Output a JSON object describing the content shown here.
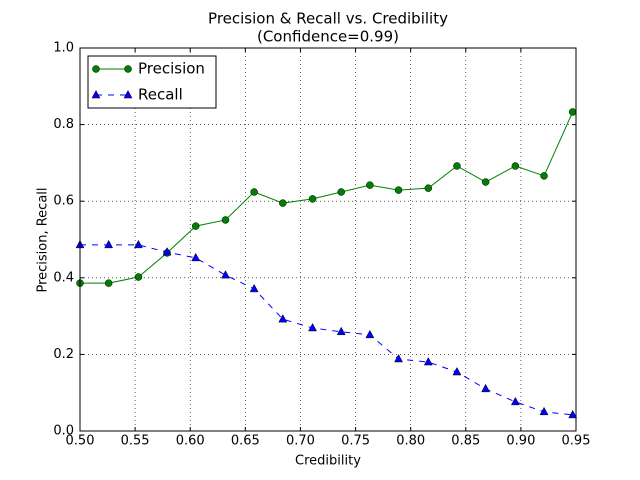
{
  "chart_data": {
    "type": "line",
    "title": "Precision & Recall vs. Credibility",
    "subtitle": "(Confidence=0.99)",
    "x_label": "Credibility",
    "y_label": "Precision, Recall",
    "x": [
      0.5,
      0.526,
      0.553,
      0.579,
      0.605,
      0.632,
      0.658,
      0.684,
      0.711,
      0.737,
      0.763,
      0.789,
      0.816,
      0.842,
      0.868,
      0.895,
      0.921,
      0.947
    ],
    "series": [
      {
        "name": "Precision",
        "color": "#008000",
        "marker": "circle",
        "dashed": false,
        "values": [
          0.386,
          0.386,
          0.402,
          0.465,
          0.535,
          0.551,
          0.624,
          0.595,
          0.606,
          0.624,
          0.642,
          0.629,
          0.634,
          0.692,
          0.65,
          0.692,
          0.666,
          0.833
        ]
      },
      {
        "name": "Recall",
        "color": "#0000ff",
        "marker": "triangle",
        "dashed": true,
        "values": [
          0.486,
          0.486,
          0.486,
          0.467,
          0.452,
          0.407,
          0.371,
          0.292,
          0.269,
          0.259,
          0.251,
          0.188,
          0.18,
          0.154,
          0.11,
          0.076,
          0.05,
          0.042
        ]
      }
    ],
    "xlim": [
      0.5,
      0.95
    ],
    "ylim": [
      0,
      1
    ],
    "xticks": [
      {
        "value": 0.5,
        "label": "0.50"
      },
      {
        "value": 0.55,
        "label": "0.55"
      },
      {
        "value": 0.6,
        "label": "0.60"
      },
      {
        "value": 0.65,
        "label": "0.65"
      },
      {
        "value": 0.7,
        "label": "0.70"
      },
      {
        "value": 0.75,
        "label": "0.75"
      },
      {
        "value": 0.8,
        "label": "0.80"
      },
      {
        "value": 0.85,
        "label": "0.85"
      },
      {
        "value": 0.9,
        "label": "0.90"
      },
      {
        "value": 0.95,
        "label": "0.95"
      }
    ],
    "yticks": [
      {
        "value": 0,
        "label": "0.0"
      },
      {
        "value": 0.2,
        "label": "0.2"
      },
      {
        "value": 0.4,
        "label": "0.4"
      },
      {
        "value": 0.6,
        "label": "0.6"
      },
      {
        "value": 0.8,
        "label": "0.8"
      },
      {
        "value": 1,
        "label": "1.0"
      }
    ],
    "grid": true,
    "legend": "upper-left"
  }
}
